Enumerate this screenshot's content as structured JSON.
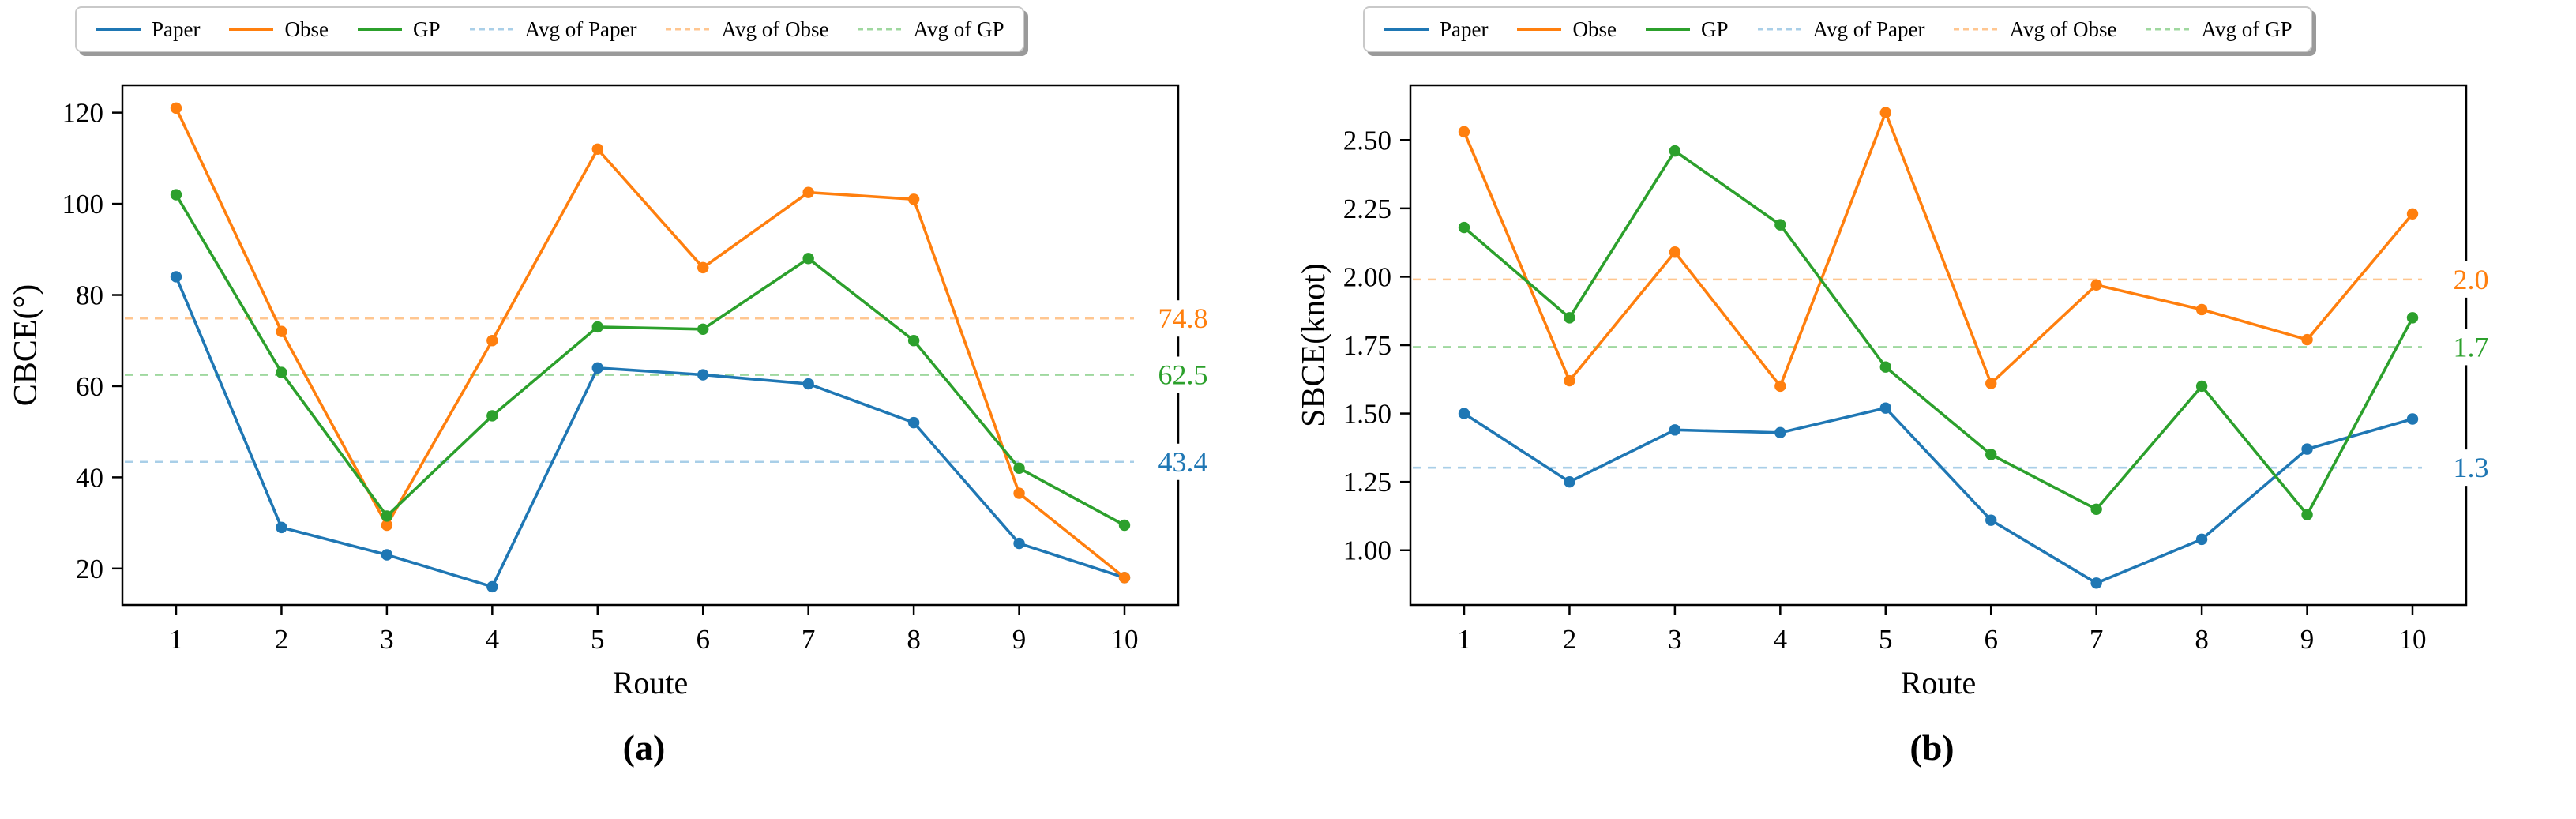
{
  "figure": {
    "captions": {
      "a": "(a)",
      "b": "(b)"
    }
  },
  "colors": {
    "paper": "#1f77b4",
    "obse": "#ff7f0e",
    "gp": "#2ca02c",
    "avg_paper": "#a9cfe8",
    "avg_obse": "#ffc690",
    "avg_gp": "#9fd89f",
    "spine": "#000000",
    "legend_border": "#c9c9c9",
    "legend_shadow": "#9a9a9a"
  },
  "chart_data": [
    {
      "id": "a",
      "type": "line",
      "title": "",
      "xlabel": "Route",
      "ylabel": "CBCE(°)",
      "x": [
        1,
        2,
        3,
        4,
        5,
        6,
        7,
        8,
        9,
        10
      ],
      "xtick_labels": [
        "1",
        "2",
        "3",
        "4",
        "5",
        "6",
        "7",
        "8",
        "9",
        "10"
      ],
      "ylim": [
        12,
        126
      ],
      "yticks": [
        20,
        40,
        60,
        80,
        100,
        120
      ],
      "ytick_labels": [
        "20",
        "40",
        "60",
        "80",
        "100",
        "120"
      ],
      "grid": false,
      "legend_position": "top",
      "series": [
        {
          "name": "Paper",
          "color_key": "paper",
          "values": [
            84,
            29,
            23,
            16,
            64,
            62.5,
            60.5,
            52,
            25.5,
            18
          ]
        },
        {
          "name": "Obse",
          "color_key": "obse",
          "values": [
            121,
            72,
            29.5,
            70,
            112,
            86,
            102.5,
            101,
            36.5,
            18
          ]
        },
        {
          "name": "GP",
          "color_key": "gp",
          "values": [
            102,
            63,
            31.5,
            53.5,
            73,
            72.5,
            88,
            70,
            42,
            29.5
          ]
        }
      ],
      "avg_lines": [
        {
          "name": "Avg of Paper",
          "color_key": "avg_paper",
          "value": 43.4,
          "label": "43.4",
          "label_color_key": "paper"
        },
        {
          "name": "Avg of Obse",
          "color_key": "avg_obse",
          "value": 74.85,
          "label": "74.8",
          "label_color_key": "obse"
        },
        {
          "name": "Avg of GP",
          "color_key": "avg_gp",
          "value": 62.5,
          "label": "62.5",
          "label_color_key": "gp"
        }
      ]
    },
    {
      "id": "b",
      "type": "line",
      "title": "",
      "xlabel": "Route",
      "ylabel": "SBCE(knot)",
      "x": [
        1,
        2,
        3,
        4,
        5,
        6,
        7,
        8,
        9,
        10
      ],
      "xtick_labels": [
        "1",
        "2",
        "3",
        "4",
        "5",
        "6",
        "7",
        "8",
        "9",
        "10"
      ],
      "ylim": [
        0.8,
        2.7
      ],
      "yticks": [
        1.0,
        1.25,
        1.5,
        1.75,
        2.0,
        2.25,
        2.5
      ],
      "ytick_labels": [
        "1.00",
        "1.25",
        "1.50",
        "1.75",
        "2.00",
        "2.25",
        "2.50"
      ],
      "grid": false,
      "legend_position": "top",
      "series": [
        {
          "name": "Paper",
          "color_key": "paper",
          "values": [
            1.5,
            1.25,
            1.44,
            1.43,
            1.52,
            1.11,
            0.88,
            1.04,
            1.37,
            1.48
          ]
        },
        {
          "name": "Obse",
          "color_key": "obse",
          "values": [
            2.53,
            1.62,
            2.09,
            1.6,
            2.6,
            1.61,
            1.97,
            1.88,
            1.77,
            2.23
          ]
        },
        {
          "name": "GP",
          "color_key": "gp",
          "values": [
            2.18,
            1.85,
            2.46,
            2.19,
            1.67,
            1.35,
            1.15,
            1.6,
            1.13,
            1.85
          ]
        }
      ],
      "avg_lines": [
        {
          "name": "Avg of Paper",
          "color_key": "avg_paper",
          "value": 1.302,
          "label": "1.3",
          "label_color_key": "paper"
        },
        {
          "name": "Avg of Obse",
          "color_key": "avg_obse",
          "value": 1.99,
          "label": "2.0",
          "label_color_key": "obse"
        },
        {
          "name": "Avg of GP",
          "color_key": "avg_gp",
          "value": 1.743,
          "label": "1.7",
          "label_color_key": "gp"
        }
      ]
    }
  ]
}
